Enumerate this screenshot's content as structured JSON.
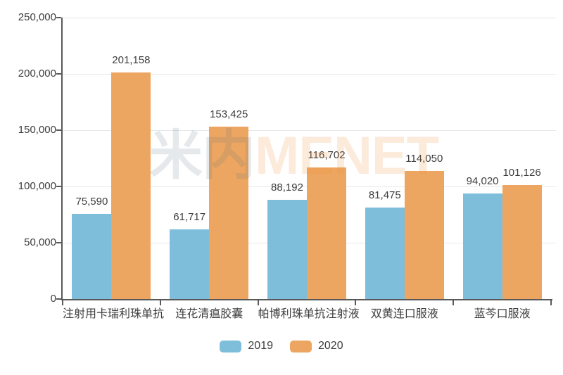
{
  "watermark": {
    "left_text": "米内",
    "right_text": "MENET"
  },
  "chart_data": {
    "type": "bar",
    "title": "",
    "xlabel": "",
    "ylabel": "",
    "categories": [
      "注射用卡瑞利珠单抗",
      "连花清瘟胶囊",
      "帕博利珠单抗注射液",
      "双黄连口服液",
      "蓝芩口服液"
    ],
    "series": [
      {
        "name": "2019",
        "color": "#7EBEDB",
        "values": [
          75590,
          61717,
          88192,
          81475,
          94020
        ]
      },
      {
        "name": "2020",
        "color": "#EDA661",
        "values": [
          201158,
          153425,
          116702,
          114050,
          101126
        ]
      }
    ],
    "data_labels": [
      [
        "75,590",
        "61,717",
        "88,192",
        "81,475",
        "94,020"
      ],
      [
        "201,158",
        "153,425",
        "116,702",
        "114,050",
        "101,126"
      ]
    ],
    "ylim": [
      0,
      250000
    ],
    "yticks": [
      0,
      50000,
      100000,
      150000,
      200000,
      250000
    ],
    "ytick_labels": [
      "0",
      "50,000",
      "100,000",
      "150,000",
      "200,000",
      "250,000"
    ],
    "grid": true,
    "legend_position": "bottom"
  },
  "colors": {
    "axis": "#595959",
    "text": "#3d3d3d",
    "gridline": "#e8e8e8",
    "background": "#ffffff",
    "watermark_left": "rgba(84,110,122,0.15)",
    "watermark_right": "rgba(237,139,54,0.18)"
  }
}
